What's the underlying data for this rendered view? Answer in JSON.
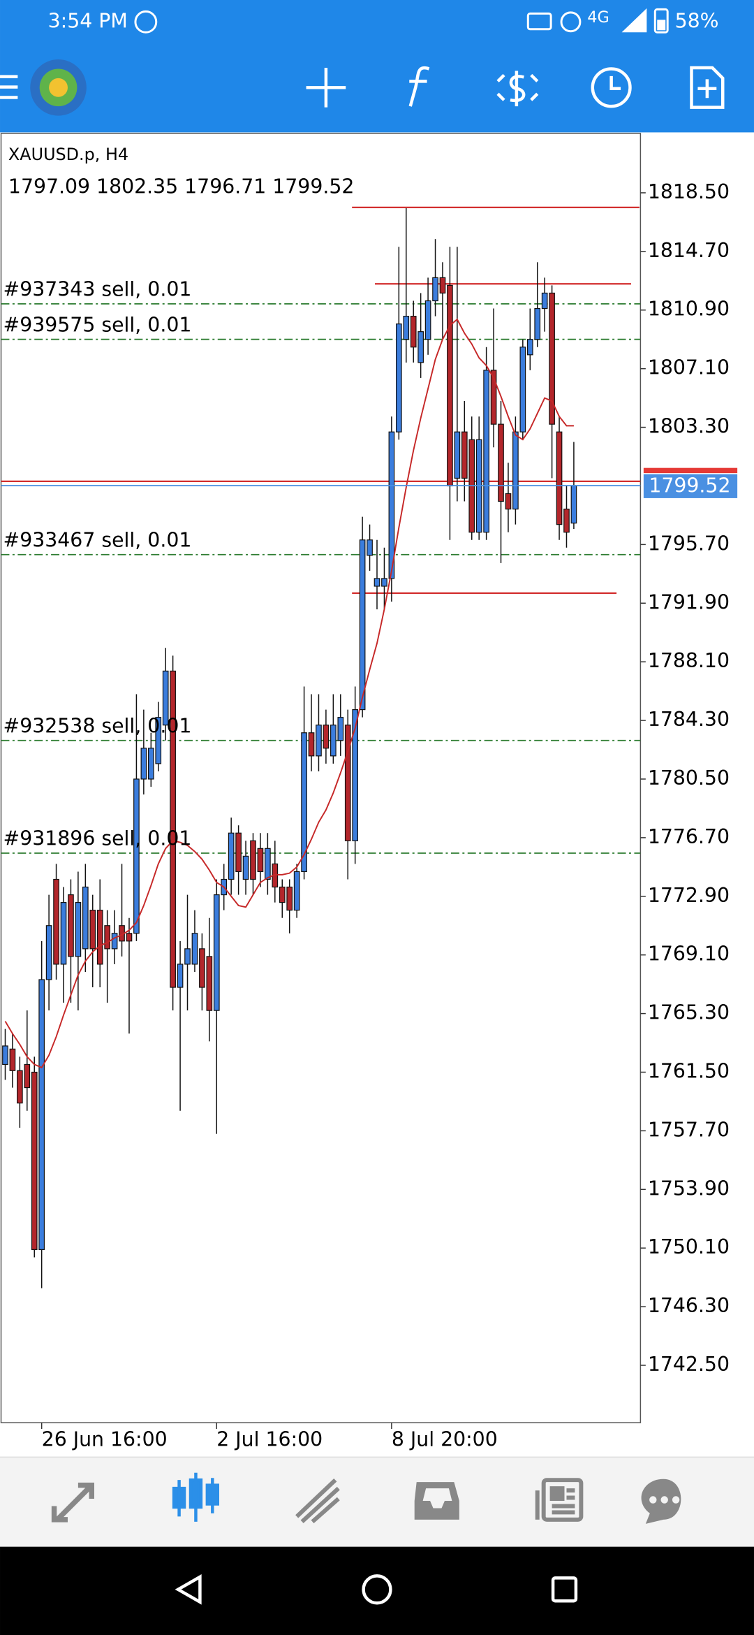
{
  "status_bar": {
    "time": "3:54 PM",
    "network": "4G",
    "battery": "58%"
  },
  "chart_data": {
    "type": "candlestick",
    "symbol_label": "XAUUSD.p, H4",
    "up_color": "#3b7ddd",
    "down_color": "#b3262b",
    "ylim": [
      1738.78,
      1822.35
    ],
    "yticks": [
      {
        "value": 1818.5,
        "label": "1818.50"
      },
      {
        "value": 1814.7,
        "label": "1814.70"
      },
      {
        "value": 1810.9,
        "label": "1810.90"
      },
      {
        "value": 1807.1,
        "label": "1807.10"
      },
      {
        "value": 1803.3,
        "label": "1803.30"
      },
      {
        "value": 1795.7,
        "label": "1795.70"
      },
      {
        "value": 1791.9,
        "label": "1791.90"
      },
      {
        "value": 1788.1,
        "label": "1788.10"
      },
      {
        "value": 1784.3,
        "label": "1784.30"
      },
      {
        "value": 1780.5,
        "label": "1780.50"
      },
      {
        "value": 1776.7,
        "label": "1776.70"
      },
      {
        "value": 1772.9,
        "label": "1772.90"
      },
      {
        "value": 1769.1,
        "label": "1769.10"
      },
      {
        "value": 1765.3,
        "label": "1765.30"
      },
      {
        "value": 1761.5,
        "label": "1761.50"
      },
      {
        "value": 1757.7,
        "label": "1757.70"
      },
      {
        "value": 1753.9,
        "label": "1753.90"
      },
      {
        "value": 1750.1,
        "label": "1750.10"
      },
      {
        "value": 1746.3,
        "label": "1746.30"
      },
      {
        "value": 1742.5,
        "label": "1742.50"
      }
    ],
    "categories": [
      null,
      null,
      null,
      null,
      null,
      "26 Jun 16:00",
      null,
      null,
      null,
      null,
      null,
      null,
      null,
      null,
      null,
      null,
      null,
      null,
      null,
      null,
      null,
      null,
      null,
      null,
      null,
      null,
      null,
      null,
      null,
      "2 Jul 16:00",
      null,
      null,
      null,
      null,
      null,
      null,
      null,
      null,
      null,
      null,
      null,
      null,
      null,
      null,
      null,
      null,
      null,
      null,
      null,
      null,
      null,
      null,
      null,
      "8 Jul 20:00",
      null,
      null,
      null,
      null,
      null,
      null,
      null,
      null,
      null,
      null,
      null,
      null,
      null,
      null,
      null,
      null,
      null,
      null,
      null,
      null,
      null,
      null,
      null,
      null,
      null
    ],
    "open": [
      1762.0,
      1763.0,
      1761.6,
      1762,
      1761.5,
      1750.0,
      1767.5,
      1774,
      1768.5,
      1773,
      1769,
      1769.5,
      1772,
      1772,
      1771,
      1769.5,
      1771,
      1770.5,
      1770.5,
      1780.5,
      1780.5,
      1781.5,
      1784,
      1787.5,
      1767,
      1768.5,
      1768.5,
      1769.5,
      1769,
      1765.5,
      1773,
      1774,
      1777,
      1774,
      1776.5,
      1776,
      1774,
      1775,
      1773.5,
      1773.5,
      1772,
      1774.5,
      1783.5,
      1782,
      1784,
      1782,
      1783,
      1784,
      1776.5,
      1785,
      1795,
      1793,
      1793,
      1793.5,
      1803,
      1809,
      1810.5,
      1807.5,
      1809,
      1811.5,
      1813,
      1812.5,
      1800,
      1803,
      1802.5,
      1796.5,
      1796.5,
      1807,
      1803.5,
      1799,
      1798,
      1803,
      1808,
      1809,
      1811,
      1812,
      1803,
      1798,
      1797.09
    ],
    "high": [
      1764.3,
      1764,
      1762.5,
      1765.5,
      1762.5,
      1770,
      1773,
      1775,
      1773.5,
      1774,
      1774.5,
      1775,
      1773,
      1774,
      1772,
      1772,
      1775,
      1771.5,
      1786,
      1785,
      1783.5,
      1785.5,
      1789,
      1788.5,
      1770,
      1773,
      1772,
      1770.5,
      1771.5,
      1774,
      1775,
      1778,
      1777.5,
      1776.5,
      1777,
      1777,
      1777,
      1776.5,
      1774,
      1774,
      1775,
      1786.5,
      1786,
      1786,
      1785,
      1786,
      1786,
      1785,
      1786.5,
      1797.5,
      1797,
      1796,
      1795.5,
      1804,
      1815,
      1817.5,
      1811.5,
      1812,
      1813,
      1815.5,
      1814,
      1815,
      1815,
      1805,
      1804,
      1804,
      1808.5,
      1811,
      1805,
      1801,
      1804,
      1809,
      1811,
      1814,
      1813,
      1812.5,
      1804,
      1799.5,
      1802.35
    ],
    "low": [
      1761,
      1760.5,
      1757.9,
      1759,
      1749.5,
      1747.5,
      1765.5,
      1767.5,
      1766,
      1766,
      1765.5,
      1768,
      1767,
      1767,
      1766,
      1768.5,
      1769,
      1764,
      1770,
      1779.5,
      1780,
      1781,
      1783,
      1765.5,
      1759,
      1765.5,
      1768,
      1765.5,
      1763.5,
      1757.5,
      1772,
      1773,
      1773,
      1773,
      1773,
      1773.5,
      1773,
      1772.5,
      1771.5,
      1770.5,
      1771.5,
      1774,
      1781,
      1781,
      1781.5,
      1781.5,
      1782,
      1774,
      1775,
      1784.5,
      1794,
      1791.5,
      1791.5,
      1792,
      1802.5,
      1807.5,
      1807.5,
      1806.5,
      1808,
      1810.5,
      1809,
      1796,
      1798.5,
      1798.5,
      1796,
      1796,
      1796,
      1802,
      1794.5,
      1796.5,
      1797,
      1802.5,
      1807,
      1808.5,
      1809.5,
      1800,
      1796,
      1795.5,
      1796.71
    ],
    "close": [
      1763.2,
      1761.6,
      1759.5,
      1760.5,
      1750,
      1767.5,
      1771,
      1768.5,
      1772.5,
      1769,
      1772.5,
      1773.5,
      1769.5,
      1768.5,
      1769.5,
      1770.5,
      1770,
      1770,
      1780.5,
      1782.5,
      1782.5,
      1784.5,
      1787.5,
      1767,
      1768.5,
      1769.5,
      1770.5,
      1767,
      1765.5,
      1773,
      1774,
      1777,
      1774.5,
      1775.5,
      1774,
      1774.5,
      1776,
      1773.5,
      1772.5,
      1772,
      1774.5,
      1783.5,
      1782,
      1784,
      1782.5,
      1784,
      1784.5,
      1776.5,
      1785,
      1796,
      1796,
      1793.5,
      1793.5,
      1803,
      1810,
      1810.5,
      1808.5,
      1809.5,
      1811.5,
      1813,
      1812,
      1799.5,
      1803,
      1800,
      1796.5,
      1802.5,
      1807,
      1803.5,
      1798.5,
      1798,
      1803,
      1808.5,
      1809,
      1811,
      1812,
      1803.5,
      1797,
      1796.5,
      1799.52
    ],
    "moving_average": {
      "color": "#c62828",
      "values": [
        1764.8,
        1764,
        1763.3,
        1762.5,
        1762,
        1761.8,
        1762.6,
        1763.8,
        1765.2,
        1766.5,
        1767.8,
        1768.7,
        1769.3,
        1769.7,
        1769.9,
        1770.2,
        1770.4,
        1770.7,
        1771.2,
        1772.3,
        1773.6,
        1775,
        1776,
        1776.5,
        1776.4,
        1776.2,
        1775.8,
        1775.3,
        1774.6,
        1773.8,
        1773.5,
        1772.9,
        1772.3,
        1772.2,
        1773,
        1773.8,
        1774.1,
        1774.3,
        1774.3,
        1774.4,
        1774.8,
        1775.6,
        1776.6,
        1777.7,
        1778.5,
        1779.6,
        1780.9,
        1782.3,
        1783.8,
        1785.8,
        1787.6,
        1789.3,
        1791.5,
        1794,
        1796.8,
        1799.4,
        1801.8,
        1803.9,
        1805.8,
        1807.7,
        1809,
        1809.9,
        1810.3,
        1809.4,
        1808.7,
        1807.8,
        1807.3,
        1806.5,
        1805.3,
        1804,
        1802.8,
        1802.5,
        1803.2,
        1804.2,
        1805.2,
        1805,
        1804,
        1803.4,
        1803.4
      ]
    },
    "orders": [
      {
        "label": "#937343 sell, 0.01",
        "price": 1811.3
      },
      {
        "label": "#939575 sell, 0.01",
        "price": 1809.0
      },
      {
        "label": "#933467 sell, 0.01",
        "price": 1795.05
      },
      {
        "label": "#932538 sell, 0.01",
        "price": 1783.0
      },
      {
        "label": "#931896 sell, 0.01",
        "price": 1775.7
      }
    ],
    "order_color": "#2e7d32",
    "horizontal_lines": [
      {
        "value": 1817.55,
        "color": "#d32f2f"
      },
      {
        "value": 1812.6,
        "color": "#d32f2f"
      },
      {
        "value": 1792.55,
        "color": "#d32f2f"
      },
      {
        "value": 1799.8,
        "color": "#d32f2f"
      }
    ],
    "bid_color": "#4a90e2"
  }
}
